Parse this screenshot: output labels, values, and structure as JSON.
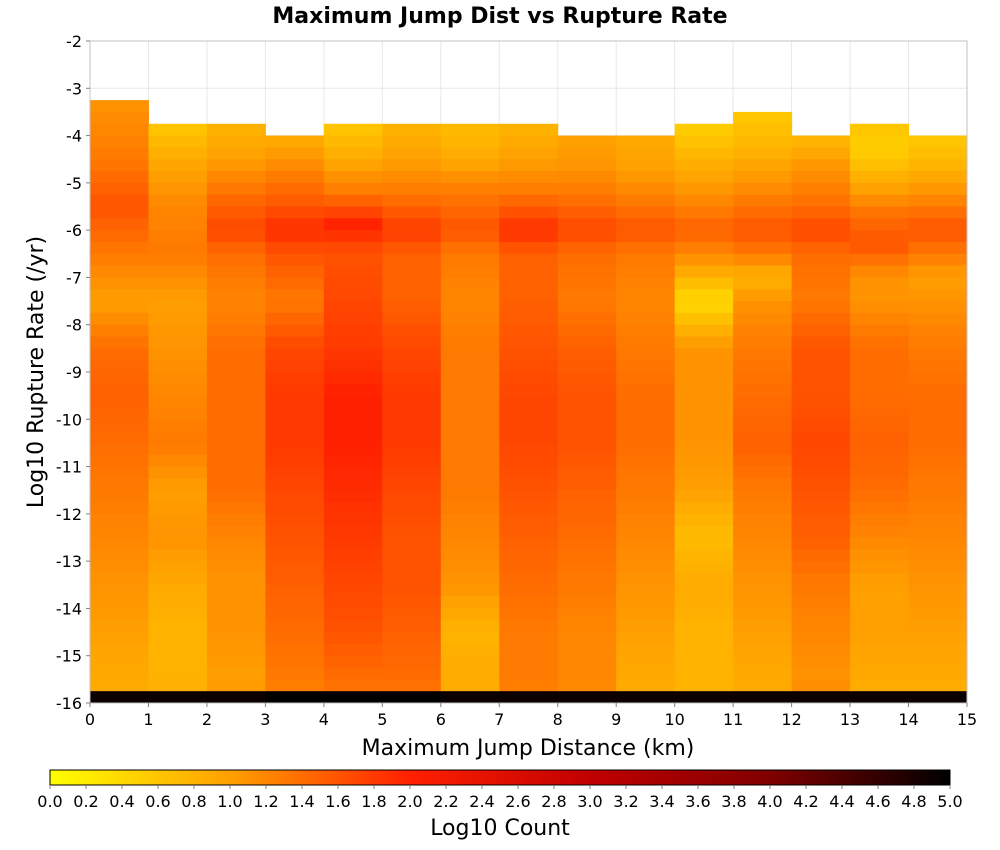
{
  "chart_data": {
    "type": "heatmap",
    "title": "Maximum Jump Dist vs Rupture Rate",
    "xlabel": "Maximum Jump Distance (km)",
    "ylabel": "Log10 Rupture Rate (/yr)",
    "xlim": [
      0,
      15
    ],
    "ylim": [
      -16,
      -2
    ],
    "xticks": [
      "0",
      "1",
      "2",
      "3",
      "4",
      "5",
      "6",
      "7",
      "8",
      "9",
      "10",
      "11",
      "12",
      "13",
      "14",
      "15"
    ],
    "yticks": [
      "-2",
      "-3",
      "-4",
      "-5",
      "-6",
      "-7",
      "-8",
      "-9",
      "-10",
      "-11",
      "-12",
      "-13",
      "-14",
      "-15",
      "-16"
    ],
    "x_bin_edges": [
      0,
      1,
      2,
      3,
      4,
      5,
      6,
      7,
      8,
      9,
      10,
      11,
      12,
      13,
      14,
      15
    ],
    "y_bin_size": 0.25,
    "grid": true,
    "colorbar": {
      "label": "Log10 Count",
      "min": 0.0,
      "max": 5.0,
      "ticks": [
        "0.0",
        "0.2",
        "0.4",
        "0.6",
        "0.8",
        "1.0",
        "1.2",
        "1.4",
        "1.6",
        "1.8",
        "2.0",
        "2.2",
        "2.4",
        "2.6",
        "2.8",
        "3.0",
        "3.2",
        "3.4",
        "3.6",
        "3.8",
        "4.0",
        "4.2",
        "4.4",
        "4.6",
        "4.8",
        "5.0"
      ],
      "colors": [
        "#ffff00",
        "#ffa000",
        "#ff2000",
        "#c00000",
        "#800000",
        "#000000"
      ],
      "placement": "bottom"
    },
    "columns": [
      {
        "x_bin": [
          0,
          1
        ],
        "top": -3.25,
        "top_value": 1.1,
        "profile": [
          [
            -3.3,
            1.1
          ],
          [
            -4.5,
            1.3
          ],
          [
            -5.5,
            1.6
          ],
          [
            -6.5,
            1.3
          ],
          [
            -7.5,
            1.0
          ],
          [
            -8.5,
            1.4
          ],
          [
            -9.5,
            1.5
          ],
          [
            -10.5,
            1.4
          ],
          [
            -11.5,
            1.3
          ],
          [
            -12.5,
            1.2
          ],
          [
            -13.5,
            1.1
          ],
          [
            -14.5,
            1.0
          ],
          [
            -15.5,
            0.9
          ],
          [
            -15.9,
            0.9
          ]
        ],
        "bottom_value": 4.9
      },
      {
        "x_bin": [
          1,
          2
        ],
        "top": -3.75,
        "top_value": 0.6,
        "profile": [
          [
            -3.8,
            0.6
          ],
          [
            -4.5,
            0.9
          ],
          [
            -5.5,
            1.2
          ],
          [
            -6.5,
            1.3
          ],
          [
            -7.5,
            1.0
          ],
          [
            -8.5,
            1.1
          ],
          [
            -9.5,
            1.2
          ],
          [
            -10.5,
            1.3
          ],
          [
            -11.5,
            1.0
          ],
          [
            -12.5,
            1.1
          ],
          [
            -13.5,
            0.9
          ],
          [
            -14.5,
            0.8
          ],
          [
            -15.5,
            0.8
          ],
          [
            -15.9,
            0.9
          ]
        ],
        "bottom_value": 4.9
      },
      {
        "x_bin": [
          2,
          3
        ],
        "top": -3.75,
        "top_value": 0.8,
        "profile": [
          [
            -3.8,
            0.8
          ],
          [
            -4.5,
            1.0
          ],
          [
            -5.5,
            1.5
          ],
          [
            -6.0,
            1.7
          ],
          [
            -6.5,
            1.4
          ],
          [
            -7.5,
            1.2
          ],
          [
            -8.5,
            1.4
          ],
          [
            -9.5,
            1.4
          ],
          [
            -10.5,
            1.4
          ],
          [
            -11.5,
            1.4
          ],
          [
            -12.5,
            1.2
          ],
          [
            -13.5,
            1.1
          ],
          [
            -14.5,
            1.1
          ],
          [
            -15.5,
            1.0
          ],
          [
            -15.9,
            1.1
          ]
        ],
        "bottom_value": 4.9
      },
      {
        "x_bin": [
          3,
          4
        ],
        "top": -4.0,
        "top_value": 0.9,
        "profile": [
          [
            -4.1,
            0.9
          ],
          [
            -4.7,
            1.2
          ],
          [
            -5.5,
            1.6
          ],
          [
            -6.0,
            1.9
          ],
          [
            -6.5,
            1.6
          ],
          [
            -7.5,
            1.3
          ],
          [
            -8.5,
            1.7
          ],
          [
            -9.5,
            1.8
          ],
          [
            -10.5,
            1.8
          ],
          [
            -11.5,
            1.7
          ],
          [
            -12.5,
            1.6
          ],
          [
            -13.5,
            1.5
          ],
          [
            -14.5,
            1.4
          ],
          [
            -15.5,
            1.3
          ],
          [
            -15.9,
            1.2
          ]
        ],
        "bottom_value": 5.0
      },
      {
        "x_bin": [
          4,
          5
        ],
        "top": -3.75,
        "top_value": 0.6,
        "profile": [
          [
            -3.8,
            0.6
          ],
          [
            -4.5,
            0.9
          ],
          [
            -5.2,
            1.3
          ],
          [
            -5.9,
            2.0
          ],
          [
            -6.5,
            1.6
          ],
          [
            -7.5,
            1.7
          ],
          [
            -8.5,
            1.8
          ],
          [
            -9.5,
            2.0
          ],
          [
            -10.5,
            2.0
          ],
          [
            -11.5,
            1.9
          ],
          [
            -12.5,
            1.8
          ],
          [
            -13.5,
            1.7
          ],
          [
            -14.5,
            1.6
          ],
          [
            -15.5,
            1.4
          ],
          [
            -15.9,
            1.3
          ]
        ],
        "bottom_value": 5.0
      },
      {
        "x_bin": [
          5,
          6
        ],
        "top": -3.75,
        "top_value": 0.8,
        "profile": [
          [
            -3.8,
            0.8
          ],
          [
            -4.5,
            1.0
          ],
          [
            -5.2,
            1.3
          ],
          [
            -6.0,
            1.8
          ],
          [
            -6.5,
            1.5
          ],
          [
            -7.5,
            1.5
          ],
          [
            -8.5,
            1.7
          ],
          [
            -9.5,
            1.8
          ],
          [
            -10.5,
            1.8
          ],
          [
            -11.5,
            1.7
          ],
          [
            -12.5,
            1.6
          ],
          [
            -13.5,
            1.6
          ],
          [
            -14.5,
            1.5
          ],
          [
            -15.5,
            1.4
          ],
          [
            -15.9,
            1.3
          ]
        ],
        "bottom_value": 5.0
      },
      {
        "x_bin": [
          6,
          7
        ],
        "top": -3.75,
        "top_value": 0.7,
        "profile": [
          [
            -3.8,
            0.7
          ],
          [
            -4.5,
            0.9
          ],
          [
            -5.2,
            1.3
          ],
          [
            -6.0,
            1.6
          ],
          [
            -6.5,
            1.3
          ],
          [
            -7.5,
            1.2
          ],
          [
            -8.5,
            1.3
          ],
          [
            -9.5,
            1.3
          ],
          [
            -10.5,
            1.3
          ],
          [
            -11.5,
            1.3
          ],
          [
            -12.5,
            1.2
          ],
          [
            -13.5,
            1.1
          ],
          [
            -14.5,
            0.8
          ],
          [
            -15.5,
            0.9
          ],
          [
            -15.9,
            0.8
          ]
        ],
        "bottom_value": 4.9
      },
      {
        "x_bin": [
          7,
          8
        ],
        "top": -3.75,
        "top_value": 0.8,
        "profile": [
          [
            -3.8,
            0.8
          ],
          [
            -4.5,
            1.0
          ],
          [
            -5.2,
            1.3
          ],
          [
            -6.0,
            1.9
          ],
          [
            -6.5,
            1.5
          ],
          [
            -7.5,
            1.5
          ],
          [
            -8.5,
            1.6
          ],
          [
            -9.5,
            1.7
          ],
          [
            -10.5,
            1.7
          ],
          [
            -11.5,
            1.6
          ],
          [
            -12.5,
            1.5
          ],
          [
            -13.5,
            1.4
          ],
          [
            -14.5,
            1.3
          ],
          [
            -15.5,
            1.3
          ],
          [
            -15.9,
            1.2
          ]
        ],
        "bottom_value": 4.9
      },
      {
        "x_bin": [
          8,
          9
        ],
        "top": -4.0,
        "top_value": 1.0,
        "profile": [
          [
            -4.1,
            1.0
          ],
          [
            -4.7,
            1.1
          ],
          [
            -5.2,
            1.3
          ],
          [
            -6.0,
            1.7
          ],
          [
            -6.5,
            1.4
          ],
          [
            -7.5,
            1.3
          ],
          [
            -8.5,
            1.5
          ],
          [
            -9.5,
            1.6
          ],
          [
            -10.5,
            1.6
          ],
          [
            -11.5,
            1.5
          ],
          [
            -12.5,
            1.4
          ],
          [
            -13.5,
            1.3
          ],
          [
            -14.5,
            1.2
          ],
          [
            -15.5,
            1.2
          ],
          [
            -15.9,
            1.1
          ]
        ],
        "bottom_value": 4.9
      },
      {
        "x_bin": [
          9,
          10
        ],
        "top": -4.0,
        "top_value": 0.9,
        "profile": [
          [
            -4.1,
            0.9
          ],
          [
            -4.7,
            1.0
          ],
          [
            -5.2,
            1.2
          ],
          [
            -6.0,
            1.6
          ],
          [
            -6.5,
            1.3
          ],
          [
            -7.5,
            1.2
          ],
          [
            -8.5,
            1.3
          ],
          [
            -9.5,
            1.4
          ],
          [
            -10.5,
            1.4
          ],
          [
            -11.5,
            1.3
          ],
          [
            -12.5,
            1.2
          ],
          [
            -13.5,
            1.1
          ],
          [
            -14.5,
            1.0
          ],
          [
            -15.5,
            0.9
          ],
          [
            -15.9,
            0.9
          ]
        ],
        "bottom_value": 4.9
      },
      {
        "x_bin": [
          10,
          11
        ],
        "top": -3.75,
        "top_value": 0.5,
        "profile": [
          [
            -3.8,
            0.5
          ],
          [
            -4.5,
            0.8
          ],
          [
            -5.2,
            1.1
          ],
          [
            -6.0,
            1.5
          ],
          [
            -6.5,
            1.2
          ],
          [
            -7.0,
            0.8
          ],
          [
            -7.5,
            0.4
          ],
          [
            -8.5,
            1.1
          ],
          [
            -9.5,
            1.1
          ],
          [
            -10.5,
            1.1
          ],
          [
            -11.5,
            1.0
          ],
          [
            -12.5,
            0.7
          ],
          [
            -13.5,
            0.9
          ],
          [
            -14.5,
            0.8
          ],
          [
            -15.5,
            0.8
          ],
          [
            -15.9,
            0.8
          ]
        ],
        "bottom_value": 4.9
      },
      {
        "x_bin": [
          11,
          12
        ],
        "top": -3.5,
        "top_value": 0.6,
        "profile": [
          [
            -3.6,
            0.6
          ],
          [
            -4.3,
            0.8
          ],
          [
            -5.2,
            1.2
          ],
          [
            -6.0,
            1.6
          ],
          [
            -6.5,
            1.3
          ],
          [
            -7.0,
            0.8
          ],
          [
            -7.5,
            1.1
          ],
          [
            -8.5,
            1.3
          ],
          [
            -9.5,
            1.4
          ],
          [
            -10.5,
            1.5
          ],
          [
            -11.5,
            1.3
          ],
          [
            -12.5,
            1.2
          ],
          [
            -13.5,
            1.1
          ],
          [
            -14.5,
            1.0
          ],
          [
            -15.5,
            0.9
          ],
          [
            -15.9,
            0.9
          ]
        ],
        "bottom_value": 4.9
      },
      {
        "x_bin": [
          12,
          13
        ],
        "top": -4.0,
        "top_value": 0.8,
        "profile": [
          [
            -4.1,
            0.8
          ],
          [
            -4.7,
            1.1
          ],
          [
            -5.5,
            1.4
          ],
          [
            -6.0,
            1.7
          ],
          [
            -6.5,
            1.4
          ],
          [
            -7.5,
            1.3
          ],
          [
            -8.5,
            1.6
          ],
          [
            -9.5,
            1.6
          ],
          [
            -10.5,
            1.7
          ],
          [
            -11.5,
            1.6
          ],
          [
            -12.5,
            1.5
          ],
          [
            -13.5,
            1.3
          ],
          [
            -14.5,
            1.2
          ],
          [
            -15.5,
            1.1
          ],
          [
            -15.9,
            1.2
          ]
        ],
        "bottom_value": 4.9
      },
      {
        "x_bin": [
          13,
          14
        ],
        "top": -3.75,
        "top_value": 0.6,
        "profile": [
          [
            -3.8,
            0.6
          ],
          [
            -4.3,
            0.5
          ],
          [
            -5.0,
            0.9
          ],
          [
            -5.7,
            1.4
          ],
          [
            -6.3,
            1.6
          ],
          [
            -7.0,
            1.1
          ],
          [
            -7.5,
            1.1
          ],
          [
            -8.5,
            1.4
          ],
          [
            -9.5,
            1.4
          ],
          [
            -10.5,
            1.5
          ],
          [
            -11.5,
            1.4
          ],
          [
            -12.5,
            1.2
          ],
          [
            -13.5,
            1.0
          ],
          [
            -14.5,
            1.0
          ],
          [
            -15.5,
            0.9
          ],
          [
            -15.9,
            0.8
          ]
        ],
        "bottom_value": 4.9
      },
      {
        "x_bin": [
          14,
          15
        ],
        "top": -4.0,
        "top_value": 0.6,
        "profile": [
          [
            -4.1,
            0.6
          ],
          [
            -4.7,
            0.8
          ],
          [
            -5.5,
            1.3
          ],
          [
            -6.0,
            1.6
          ],
          [
            -6.5,
            1.3
          ],
          [
            -7.0,
            1.0
          ],
          [
            -7.5,
            1.1
          ],
          [
            -8.5,
            1.3
          ],
          [
            -9.5,
            1.4
          ],
          [
            -10.5,
            1.4
          ],
          [
            -11.5,
            1.3
          ],
          [
            -12.5,
            1.2
          ],
          [
            -13.5,
            1.1
          ],
          [
            -14.5,
            1.0
          ],
          [
            -15.5,
            0.9
          ],
          [
            -15.9,
            0.8
          ]
        ],
        "bottom_value": 4.9
      }
    ]
  }
}
